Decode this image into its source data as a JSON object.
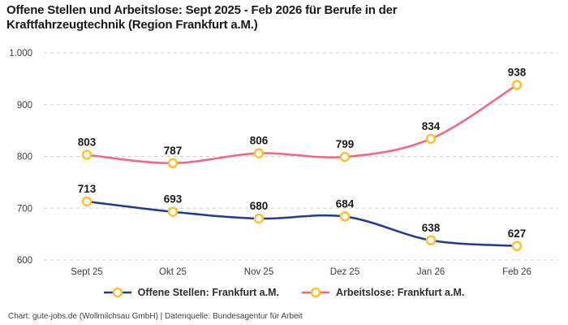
{
  "footer": "Chart: gute-jobs.de (Wollmilchsau GmbH) | Datenquelle: Bundesagentur für Arbeit",
  "colors": {
    "offene_stellen_line": "#1E3C96",
    "arbeitslose_line": "#F9637F",
    "marker_ring": "#FFC02E",
    "marker_fill": "#FFFFFF",
    "gridline": "#CDCDCD",
    "title_text": "#1A1A1A"
  },
  "chart_data": {
    "type": "line",
    "title": "Offene Stellen und Arbeitslose: Sept 2025 - Feb 2026 für Berufe in der Kraftfahrzeugtechnik (Region Frankfurt a.M.)",
    "categories": [
      "Sept 25",
      "Okt 25",
      "Nov 25",
      "Dez 25",
      "Jan 26",
      "Feb 26"
    ],
    "series": [
      {
        "name": "Offene Stellen: Frankfurt a.M.",
        "values": [
          713,
          693,
          680,
          684,
          638,
          627
        ],
        "color": "#1E3C96"
      },
      {
        "name": "Arbeitslose: Frankfurt a.M.",
        "values": [
          803,
          787,
          806,
          799,
          834,
          938
        ],
        "color": "#F9637F"
      }
    ],
    "xlabel": "",
    "ylabel": "",
    "ylim": [
      600,
      1000
    ],
    "y_ticks": [
      600,
      700,
      800,
      900,
      1000
    ],
    "y_tick_labels": [
      "600",
      "700",
      "800",
      "900",
      "1.000"
    ],
    "grid": "horizontal-dashed",
    "legend_position": "bottom",
    "marker": "circle-yellow-ring-white-fill",
    "value_labels": "above-points"
  }
}
